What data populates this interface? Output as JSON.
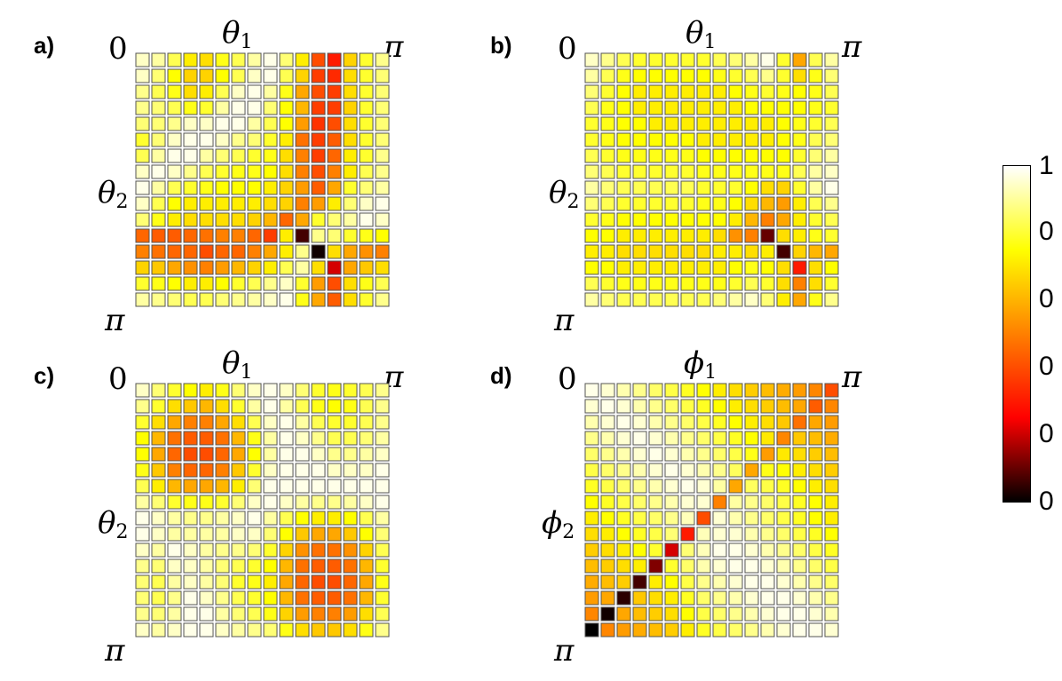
{
  "chart_data": [
    {
      "type": "heatmap",
      "panel_label": "a)",
      "title": "θ",
      "title_sub": "1",
      "ylabel": "θ",
      "ylabel_sub": "2",
      "x_start_label": "0",
      "x_end_label": "π",
      "y_end_label": "π",
      "values": [
        [
          0.95,
          0.92,
          0.85,
          0.75,
          0.72,
          0.8,
          0.85,
          0.92,
          0.98,
          0.88,
          0.75,
          0.45,
          0.35,
          0.7,
          0.82,
          0.9
        ],
        [
          0.95,
          0.88,
          0.78,
          0.7,
          0.7,
          0.78,
          0.85,
          0.95,
          0.98,
          0.85,
          0.7,
          0.42,
          0.38,
          0.72,
          0.82,
          0.88
        ],
        [
          0.9,
          0.85,
          0.8,
          0.72,
          0.75,
          0.85,
          0.95,
          0.98,
          0.92,
          0.8,
          0.62,
          0.45,
          0.42,
          0.72,
          0.82,
          0.88
        ],
        [
          0.9,
          0.88,
          0.85,
          0.8,
          0.82,
          0.92,
          0.98,
          0.98,
          0.88,
          0.78,
          0.65,
          0.42,
          0.42,
          0.7,
          0.82,
          0.88
        ],
        [
          0.88,
          0.88,
          0.9,
          0.95,
          0.95,
          0.98,
          0.98,
          0.92,
          0.85,
          0.78,
          0.6,
          0.4,
          0.45,
          0.72,
          0.82,
          0.88
        ],
        [
          0.82,
          0.88,
          0.95,
          0.98,
          0.98,
          0.95,
          0.9,
          0.88,
          0.82,
          0.75,
          0.52,
          0.42,
          0.48,
          0.72,
          0.82,
          0.88
        ],
        [
          0.85,
          0.92,
          0.98,
          0.98,
          0.92,
          0.88,
          0.85,
          0.82,
          0.8,
          0.72,
          0.55,
          0.42,
          0.5,
          0.75,
          0.82,
          0.9
        ],
        [
          0.95,
          0.98,
          0.95,
          0.9,
          0.85,
          0.82,
          0.8,
          0.8,
          0.78,
          0.72,
          0.55,
          0.45,
          0.55,
          0.75,
          0.85,
          0.9
        ],
        [
          0.98,
          0.92,
          0.85,
          0.82,
          0.8,
          0.78,
          0.78,
          0.78,
          0.75,
          0.7,
          0.6,
          0.48,
          0.62,
          0.82,
          0.88,
          0.92
        ],
        [
          0.95,
          0.85,
          0.78,
          0.75,
          0.75,
          0.75,
          0.75,
          0.75,
          0.72,
          0.7,
          0.55,
          0.6,
          0.75,
          0.88,
          0.95,
          0.98
        ],
        [
          0.88,
          0.8,
          0.75,
          0.72,
          0.72,
          0.72,
          0.72,
          0.7,
          0.65,
          0.5,
          0.62,
          0.82,
          0.88,
          0.92,
          0.98,
          0.95
        ],
        [
          0.5,
          0.48,
          0.48,
          0.5,
          0.52,
          0.55,
          0.55,
          0.5,
          0.42,
          0.75,
          0.08,
          0.9,
          0.88,
          0.82,
          0.8,
          0.78
        ],
        [
          0.55,
          0.52,
          0.5,
          0.5,
          0.45,
          0.5,
          0.5,
          0.55,
          0.62,
          0.75,
          0.9,
          0.02,
          0.72,
          0.62,
          0.58,
          0.55
        ],
        [
          0.7,
          0.68,
          0.62,
          0.58,
          0.55,
          0.6,
          0.65,
          0.7,
          0.75,
          0.85,
          0.92,
          0.72,
          0.25,
          0.62,
          0.68,
          0.72
        ],
        [
          0.82,
          0.8,
          0.78,
          0.75,
          0.75,
          0.78,
          0.82,
          0.85,
          0.9,
          0.95,
          0.82,
          0.6,
          0.45,
          0.72,
          0.8,
          0.85
        ],
        [
          0.92,
          0.9,
          0.88,
          0.85,
          0.85,
          0.88,
          0.9,
          0.92,
          0.95,
          0.98,
          0.8,
          0.62,
          0.48,
          0.72,
          0.82,
          0.9
        ]
      ]
    },
    {
      "type": "heatmap",
      "panel_label": "b)",
      "title": "θ",
      "title_sub": "1",
      "ylabel": "θ",
      "ylabel_sub": "2",
      "x_start_label": "0",
      "x_end_label": "π",
      "y_end_label": "π",
      "values": [
        [
          0.95,
          0.9,
          0.85,
          0.82,
          0.82,
          0.82,
          0.82,
          0.82,
          0.85,
          0.88,
          0.92,
          0.98,
          0.82,
          0.62,
          0.85,
          0.92
        ],
        [
          0.92,
          0.85,
          0.8,
          0.78,
          0.78,
          0.78,
          0.78,
          0.78,
          0.8,
          0.82,
          0.85,
          0.9,
          0.82,
          0.72,
          0.8,
          0.88
        ],
        [
          0.88,
          0.82,
          0.78,
          0.75,
          0.75,
          0.75,
          0.75,
          0.75,
          0.75,
          0.78,
          0.8,
          0.82,
          0.8,
          0.78,
          0.8,
          0.85
        ],
        [
          0.85,
          0.8,
          0.78,
          0.75,
          0.75,
          0.75,
          0.75,
          0.75,
          0.75,
          0.75,
          0.78,
          0.78,
          0.78,
          0.78,
          0.8,
          0.82
        ],
        [
          0.82,
          0.8,
          0.78,
          0.78,
          0.75,
          0.75,
          0.75,
          0.75,
          0.75,
          0.75,
          0.75,
          0.75,
          0.78,
          0.8,
          0.82,
          0.85
        ],
        [
          0.82,
          0.8,
          0.78,
          0.78,
          0.78,
          0.78,
          0.78,
          0.75,
          0.75,
          0.75,
          0.75,
          0.75,
          0.78,
          0.8,
          0.85,
          0.88
        ],
        [
          0.85,
          0.82,
          0.8,
          0.8,
          0.8,
          0.8,
          0.8,
          0.78,
          0.78,
          0.78,
          0.78,
          0.78,
          0.78,
          0.82,
          0.88,
          0.92
        ],
        [
          0.88,
          0.85,
          0.82,
          0.82,
          0.82,
          0.82,
          0.82,
          0.8,
          0.8,
          0.8,
          0.8,
          0.8,
          0.8,
          0.85,
          0.92,
          0.95
        ],
        [
          0.92,
          0.88,
          0.85,
          0.85,
          0.85,
          0.85,
          0.85,
          0.82,
          0.82,
          0.82,
          0.78,
          0.72,
          0.7,
          0.82,
          0.92,
          0.98
        ],
        [
          0.88,
          0.85,
          0.82,
          0.82,
          0.82,
          0.82,
          0.82,
          0.8,
          0.8,
          0.78,
          0.72,
          0.65,
          0.6,
          0.75,
          0.85,
          0.9
        ],
        [
          0.82,
          0.8,
          0.78,
          0.78,
          0.78,
          0.78,
          0.78,
          0.78,
          0.78,
          0.75,
          0.65,
          0.55,
          0.62,
          0.75,
          0.82,
          0.85
        ],
        [
          0.78,
          0.78,
          0.75,
          0.75,
          0.75,
          0.75,
          0.75,
          0.75,
          0.72,
          0.58,
          0.55,
          0.12,
          0.72,
          0.75,
          0.8,
          0.82
        ],
        [
          0.75,
          0.75,
          0.72,
          0.72,
          0.72,
          0.72,
          0.72,
          0.72,
          0.75,
          0.75,
          0.72,
          0.75,
          0.08,
          0.7,
          0.65,
          0.62
        ],
        [
          0.78,
          0.78,
          0.75,
          0.75,
          0.75,
          0.75,
          0.75,
          0.75,
          0.75,
          0.78,
          0.8,
          0.78,
          0.72,
          0.35,
          0.72,
          0.78
        ],
        [
          0.85,
          0.82,
          0.8,
          0.8,
          0.8,
          0.8,
          0.8,
          0.8,
          0.8,
          0.82,
          0.85,
          0.82,
          0.72,
          0.55,
          0.72,
          0.82
        ],
        [
          0.92,
          0.88,
          0.85,
          0.85,
          0.85,
          0.85,
          0.85,
          0.85,
          0.88,
          0.92,
          0.95,
          0.88,
          0.75,
          0.62,
          0.8,
          0.9
        ]
      ]
    },
    {
      "type": "heatmap",
      "panel_label": "c)",
      "title": "θ",
      "title_sub": "1",
      "ylabel": "θ",
      "ylabel_sub": "2",
      "x_start_label": "0",
      "x_end_label": "π",
      "y_end_label": "π",
      "values": [
        [
          0.95,
          0.88,
          0.82,
          0.78,
          0.75,
          0.8,
          0.88,
          0.95,
          0.98,
          0.95,
          0.88,
          0.82,
          0.8,
          0.82,
          0.85,
          0.9
        ],
        [
          0.9,
          0.82,
          0.72,
          0.68,
          0.65,
          0.72,
          0.82,
          0.92,
          0.98,
          0.92,
          0.85,
          0.8,
          0.78,
          0.8,
          0.85,
          0.9
        ],
        [
          0.82,
          0.72,
          0.62,
          0.55,
          0.55,
          0.62,
          0.72,
          0.85,
          0.95,
          0.98,
          0.92,
          0.85,
          0.82,
          0.82,
          0.85,
          0.9
        ],
        [
          0.78,
          0.65,
          0.52,
          0.48,
          0.48,
          0.52,
          0.65,
          0.8,
          0.92,
          0.98,
          0.95,
          0.9,
          0.85,
          0.85,
          0.88,
          0.92
        ],
        [
          0.78,
          0.62,
          0.5,
          0.45,
          0.45,
          0.5,
          0.62,
          0.78,
          0.92,
          0.98,
          0.98,
          0.95,
          0.9,
          0.9,
          0.92,
          0.95
        ],
        [
          0.8,
          0.68,
          0.55,
          0.5,
          0.5,
          0.55,
          0.68,
          0.82,
          0.95,
          0.98,
          0.98,
          0.98,
          0.95,
          0.95,
          0.95,
          0.98
        ],
        [
          0.85,
          0.75,
          0.65,
          0.62,
          0.62,
          0.65,
          0.75,
          0.88,
          0.98,
          0.98,
          0.98,
          0.98,
          0.98,
          0.98,
          0.98,
          0.98
        ],
        [
          0.92,
          0.88,
          0.82,
          0.8,
          0.8,
          0.82,
          0.88,
          0.95,
          0.98,
          0.95,
          0.92,
          0.9,
          0.9,
          0.92,
          0.95,
          0.98
        ],
        [
          0.98,
          0.95,
          0.92,
          0.9,
          0.9,
          0.92,
          0.95,
          0.98,
          0.92,
          0.85,
          0.78,
          0.75,
          0.75,
          0.78,
          0.85,
          0.92
        ],
        [
          0.98,
          0.95,
          0.92,
          0.92,
          0.92,
          0.92,
          0.95,
          0.95,
          0.88,
          0.78,
          0.68,
          0.62,
          0.62,
          0.68,
          0.78,
          0.88
        ],
        [
          0.95,
          0.92,
          0.98,
          0.95,
          0.92,
          0.9,
          0.9,
          0.88,
          0.82,
          0.7,
          0.58,
          0.52,
          0.52,
          0.58,
          0.7,
          0.85
        ],
        [
          0.9,
          0.88,
          0.95,
          0.95,
          0.92,
          0.88,
          0.85,
          0.82,
          0.78,
          0.65,
          0.52,
          0.48,
          0.48,
          0.52,
          0.65,
          0.82
        ],
        [
          0.88,
          0.85,
          0.92,
          0.95,
          0.92,
          0.88,
          0.82,
          0.8,
          0.75,
          0.62,
          0.5,
          0.45,
          0.45,
          0.5,
          0.62,
          0.8
        ],
        [
          0.88,
          0.85,
          0.9,
          0.98,
          0.95,
          0.9,
          0.85,
          0.82,
          0.78,
          0.65,
          0.52,
          0.48,
          0.48,
          0.52,
          0.65,
          0.82
        ],
        [
          0.9,
          0.88,
          0.92,
          0.98,
          0.98,
          0.92,
          0.88,
          0.85,
          0.8,
          0.7,
          0.6,
          0.55,
          0.55,
          0.6,
          0.72,
          0.85
        ],
        [
          0.95,
          0.92,
          0.95,
          0.98,
          0.98,
          0.95,
          0.92,
          0.9,
          0.88,
          0.8,
          0.72,
          0.68,
          0.68,
          0.72,
          0.8,
          0.9
        ]
      ]
    },
    {
      "type": "heatmap",
      "panel_label": "d)",
      "title": "ϕ",
      "title_sub": "1",
      "ylabel": "ϕ",
      "ylabel_sub": "2",
      "x_start_label": "0",
      "x_end_label": "π",
      "y_end_label": "π",
      "values": [
        [
          0.98,
          0.96,
          0.93,
          0.9,
          0.87,
          0.84,
          0.81,
          0.78,
          0.75,
          0.72,
          0.69,
          0.66,
          0.63,
          0.6,
          0.56,
          0.45
        ],
        [
          0.96,
          0.98,
          0.96,
          0.93,
          0.9,
          0.87,
          0.84,
          0.81,
          0.78,
          0.75,
          0.72,
          0.69,
          0.66,
          0.62,
          0.48,
          0.56
        ],
        [
          0.93,
          0.96,
          0.98,
          0.96,
          0.93,
          0.9,
          0.87,
          0.84,
          0.81,
          0.78,
          0.75,
          0.72,
          0.68,
          0.52,
          0.62,
          0.6
        ],
        [
          0.9,
          0.93,
          0.96,
          0.98,
          0.96,
          0.93,
          0.9,
          0.87,
          0.84,
          0.81,
          0.78,
          0.74,
          0.56,
          0.68,
          0.66,
          0.63
        ],
        [
          0.87,
          0.9,
          0.93,
          0.96,
          0.98,
          0.96,
          0.93,
          0.9,
          0.87,
          0.84,
          0.8,
          0.6,
          0.74,
          0.72,
          0.69,
          0.66
        ],
        [
          0.84,
          0.87,
          0.9,
          0.93,
          0.96,
          0.98,
          0.96,
          0.93,
          0.9,
          0.86,
          0.62,
          0.8,
          0.78,
          0.75,
          0.72,
          0.69
        ],
        [
          0.81,
          0.84,
          0.87,
          0.9,
          0.93,
          0.96,
          0.98,
          0.96,
          0.92,
          0.62,
          0.86,
          0.84,
          0.81,
          0.78,
          0.75,
          0.72
        ],
        [
          0.78,
          0.81,
          0.84,
          0.87,
          0.9,
          0.93,
          0.96,
          0.96,
          0.55,
          0.92,
          0.9,
          0.87,
          0.84,
          0.81,
          0.78,
          0.75
        ],
        [
          0.75,
          0.78,
          0.81,
          0.84,
          0.87,
          0.9,
          0.94,
          0.45,
          0.96,
          0.93,
          0.9,
          0.87,
          0.84,
          0.81,
          0.78,
          0.75
        ],
        [
          0.72,
          0.75,
          0.78,
          0.81,
          0.84,
          0.88,
          0.35,
          0.94,
          0.96,
          0.96,
          0.93,
          0.9,
          0.87,
          0.84,
          0.81,
          0.78
        ],
        [
          0.69,
          0.72,
          0.75,
          0.78,
          0.82,
          0.25,
          0.88,
          0.94,
          0.98,
          0.98,
          0.96,
          0.93,
          0.9,
          0.87,
          0.84,
          0.81
        ],
        [
          0.66,
          0.69,
          0.72,
          0.75,
          0.15,
          0.82,
          0.87,
          0.93,
          0.96,
          0.98,
          0.98,
          0.96,
          0.93,
          0.9,
          0.87,
          0.84
        ],
        [
          0.63,
          0.66,
          0.69,
          0.08,
          0.75,
          0.78,
          0.84,
          0.9,
          0.93,
          0.96,
          0.98,
          0.98,
          0.96,
          0.93,
          0.9,
          0.87
        ],
        [
          0.6,
          0.62,
          0.05,
          0.68,
          0.72,
          0.75,
          0.81,
          0.87,
          0.9,
          0.93,
          0.96,
          0.98,
          0.98,
          0.96,
          0.93,
          0.9
        ],
        [
          0.56,
          0.02,
          0.62,
          0.66,
          0.69,
          0.72,
          0.78,
          0.84,
          0.87,
          0.9,
          0.93,
          0.96,
          0.98,
          0.98,
          0.96,
          0.93
        ],
        [
          0.0,
          0.56,
          0.6,
          0.63,
          0.66,
          0.69,
          0.75,
          0.81,
          0.84,
          0.87,
          0.9,
          0.93,
          0.96,
          0.98,
          0.98,
          0.96
        ]
      ]
    }
  ],
  "colorbar": {
    "tick_labels": [
      "1",
      "0",
      "0",
      "0",
      "0",
      "0"
    ],
    "colors": [
      "#ffffff",
      "#ffff00",
      "#ff8000",
      "#ff0000",
      "#000000"
    ]
  }
}
